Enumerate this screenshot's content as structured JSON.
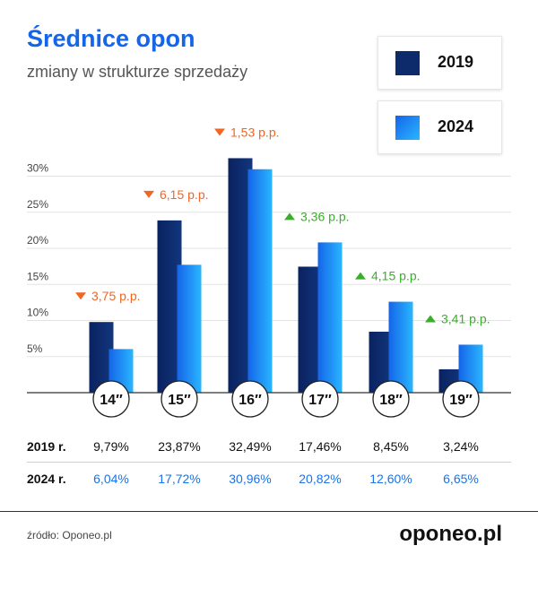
{
  "header": {
    "title": "Średnice opon",
    "subtitle": "zmiany w strukturze sprzedaży"
  },
  "colors": {
    "series_2019": "#0d2a6b",
    "series_2024": "#1a8cff",
    "down_arrow": "#f26522",
    "up_arrow": "#3aae2a",
    "value_2024_text": "#1a73e8"
  },
  "chart_data": {
    "type": "bar",
    "categories": [
      "14″",
      "15″",
      "16″",
      "17″",
      "18″",
      "19″"
    ],
    "series": [
      {
        "name": "2019",
        "values": [
          9.79,
          23.87,
          32.49,
          17.46,
          8.45,
          3.24
        ]
      },
      {
        "name": "2024",
        "values": [
          6.04,
          17.72,
          30.96,
          20.82,
          12.6,
          6.65
        ]
      }
    ],
    "y_ticks": [
      "5%",
      "10%",
      "15%",
      "20%",
      "25%",
      "30%"
    ],
    "ylim": [
      0,
      32
    ],
    "grid": true,
    "legend": "top-right",
    "changes": [
      {
        "label": "3,75 p.p.",
        "direction": "down"
      },
      {
        "label": "6,15 p.p.",
        "direction": "down"
      },
      {
        "label": "1,53 p.p.",
        "direction": "down"
      },
      {
        "label": "3,36 p.p.",
        "direction": "up"
      },
      {
        "label": "4,15 p.p.",
        "direction": "up"
      },
      {
        "label": "3,41 p.p.",
        "direction": "up"
      }
    ]
  },
  "legend": [
    {
      "label": "2019"
    },
    {
      "label": "2024"
    }
  ],
  "table": {
    "rows": [
      {
        "label": "2019 r.",
        "values": [
          "9,79%",
          "23,87%",
          "32,49%",
          "17,46%",
          "8,45%",
          "3,24%"
        ]
      },
      {
        "label": "2024 r.",
        "values": [
          "6,04%",
          "17,72%",
          "30,96%",
          "20,82%",
          "12,60%",
          "6,65%"
        ]
      }
    ]
  },
  "footer": {
    "source": "źródło: Oponeo.pl",
    "brand": "oponeo.pl"
  }
}
